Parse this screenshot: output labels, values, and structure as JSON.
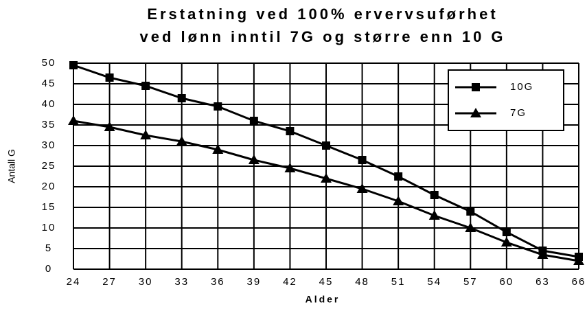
{
  "chart_data": {
    "type": "line",
    "title": [
      "Erstatning ved 100% ervervsuførhet",
      "ved lønn inntil 7G og større enn 10 G"
    ],
    "x_label": "Alder",
    "y_label": "Antall G",
    "x": [
      24,
      27,
      30,
      33,
      36,
      39,
      42,
      45,
      48,
      51,
      54,
      57,
      60,
      63,
      66
    ],
    "xlim": [
      24,
      66
    ],
    "xticks": [
      24,
      27,
      30,
      33,
      36,
      39,
      42,
      45,
      48,
      51,
      54,
      57,
      60,
      63,
      66
    ],
    "ylim": [
      0,
      50
    ],
    "yticks": [
      0,
      5,
      10,
      15,
      20,
      25,
      30,
      35,
      40,
      45,
      50
    ],
    "grid": true,
    "legend": "upper right",
    "series": [
      {
        "name": "10G",
        "color": "#000000",
        "marker": "square",
        "values": [
          49.5,
          46.5,
          44.5,
          41.5,
          39.5,
          36,
          33.5,
          30,
          26.5,
          22.5,
          18,
          14,
          9,
          4.5,
          3
        ]
      },
      {
        "name": "7G",
        "color": "#000000",
        "marker": "triangle",
        "values": [
          36,
          34.5,
          32.5,
          31,
          29,
          26.5,
          24.5,
          22,
          19.5,
          16.5,
          13,
          10,
          6.5,
          3.5,
          2
        ]
      }
    ]
  }
}
